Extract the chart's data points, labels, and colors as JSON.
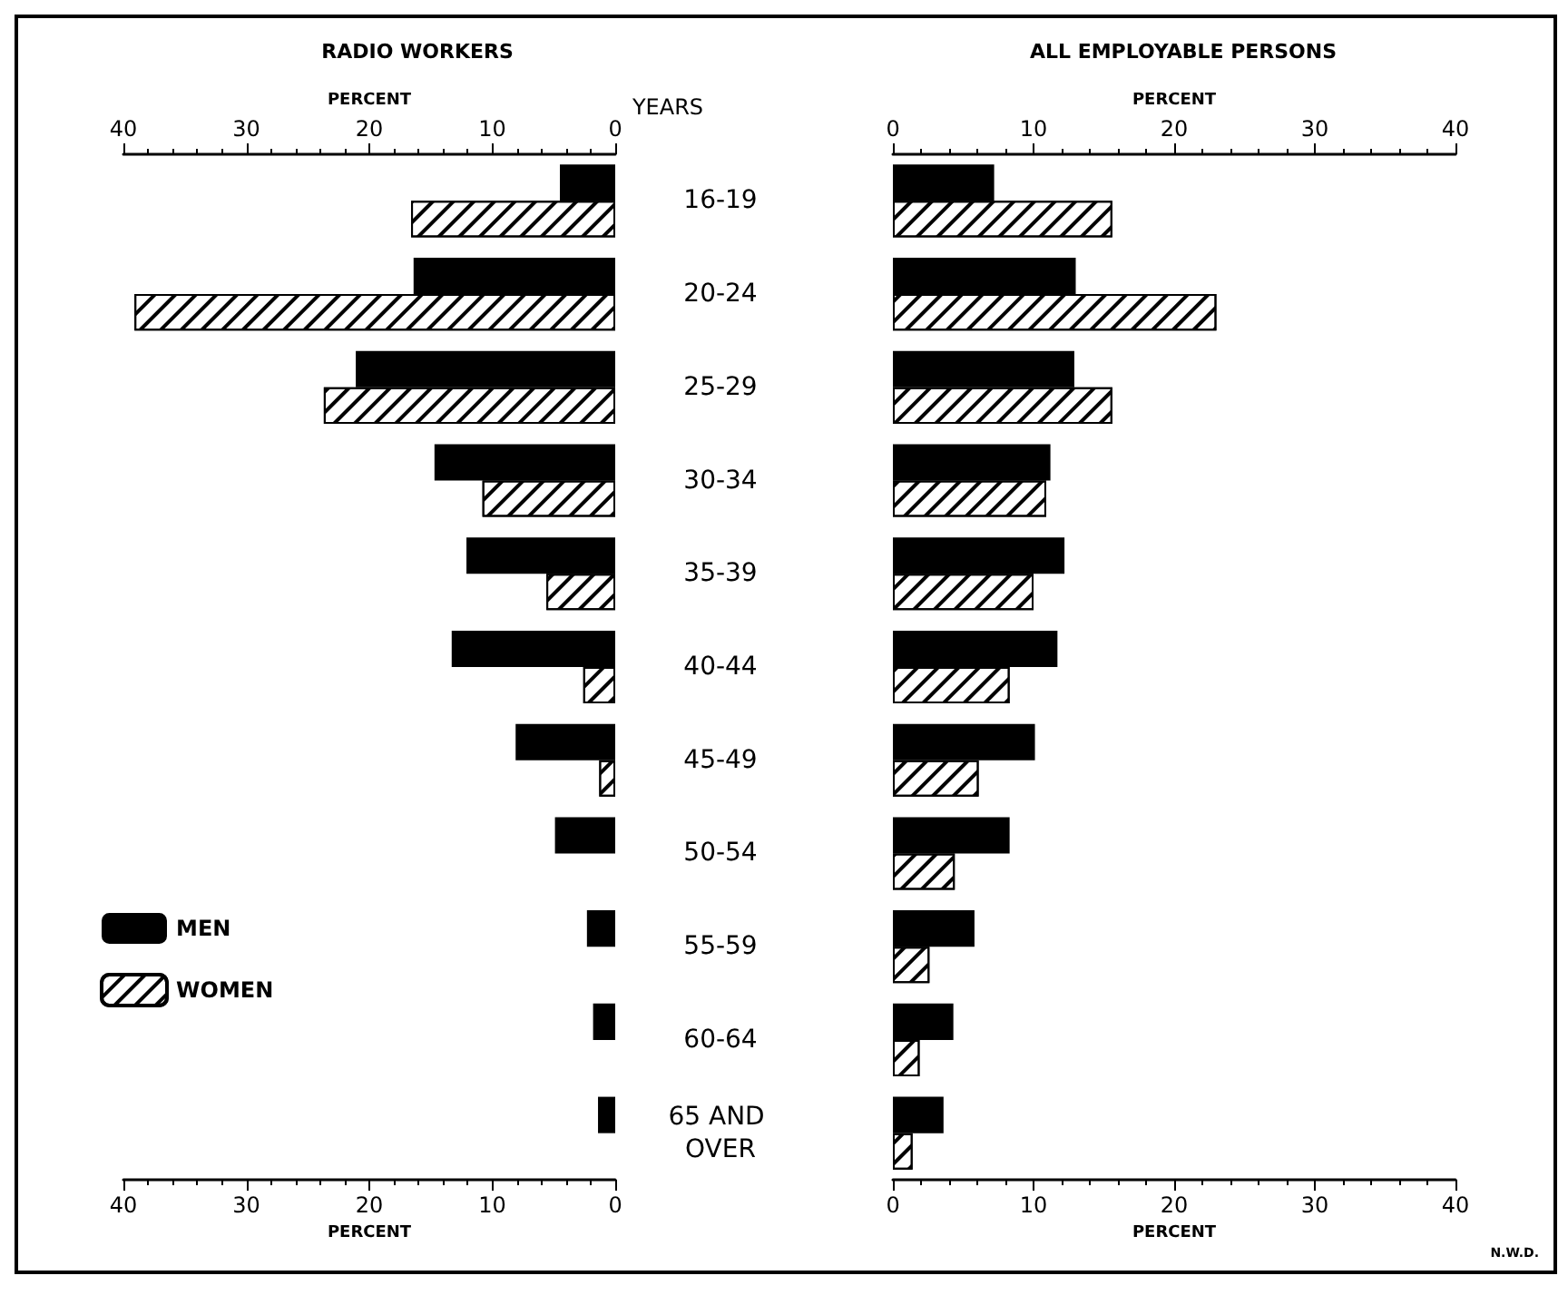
{
  "chart_data": [
    {
      "type": "bar",
      "orientation": "horizontal",
      "title": "RADIO WORKERS",
      "ylabel": "YEARS",
      "categories": [
        "16-19",
        "20-24",
        "25-29",
        "30-34",
        "35-39",
        "40-44",
        "45-49",
        "50-54",
        "55-59",
        "60-64",
        "65 AND OVER"
      ],
      "series": [
        {
          "name": "MEN",
          "color": "#000000",
          "values": [
            4.5,
            16.4,
            21.1,
            14.7,
            12.1,
            13.3,
            8.1,
            4.9,
            2.3,
            1.8,
            1.4
          ]
        },
        {
          "name": "WOMEN",
          "color": "#ffffff",
          "values": [
            16.6,
            39.1,
            23.7,
            10.8,
            5.6,
            2.6,
            1.3,
            null,
            null,
            null,
            null
          ]
        }
      ],
      "xlim": [
        40,
        0
      ],
      "xticks": [
        40,
        30,
        20,
        10,
        0
      ],
      "xlabel": "PERCENT",
      "x2lim": [
        40,
        0
      ],
      "x2ticks": [
        40,
        30,
        20,
        10,
        0
      ],
      "x2label": "PERCENT",
      "legend": "bottom left"
    },
    {
      "type": "bar",
      "orientation": "horizontal",
      "title": "ALL EMPLOYABLE PERSONS",
      "categories": [
        "16-19",
        "20-24",
        "25-29",
        "30-34",
        "35-39",
        "40-44",
        "45-49",
        "50-54",
        "55-59",
        "60-64",
        "65 AND OVER"
      ],
      "series": [
        {
          "color": "#000000",
          "values": [
            7.2,
            13.0,
            12.9,
            11.2,
            12.2,
            11.7,
            10.1,
            8.3,
            5.8,
            4.3,
            3.6
          ]
        },
        {
          "color": "#ffffff",
          "values": [
            15.6,
            23.0,
            15.6,
            10.9,
            10.0,
            8.3,
            6.1,
            4.4,
            2.6,
            1.9,
            1.4
          ]
        }
      ],
      "xlim": [
        0,
        40
      ],
      "xticks": [
        0,
        10,
        20,
        30,
        40
      ],
      "xlabel": "PERCENT",
      "x2lim": [
        0,
        40
      ],
      "x2ticks": [
        0,
        10,
        20,
        30,
        40
      ],
      "x2label": "PERCENT",
      "tick_labels": "x",
      "annotations": [
        "N.W.D."
      ]
    }
  ]
}
